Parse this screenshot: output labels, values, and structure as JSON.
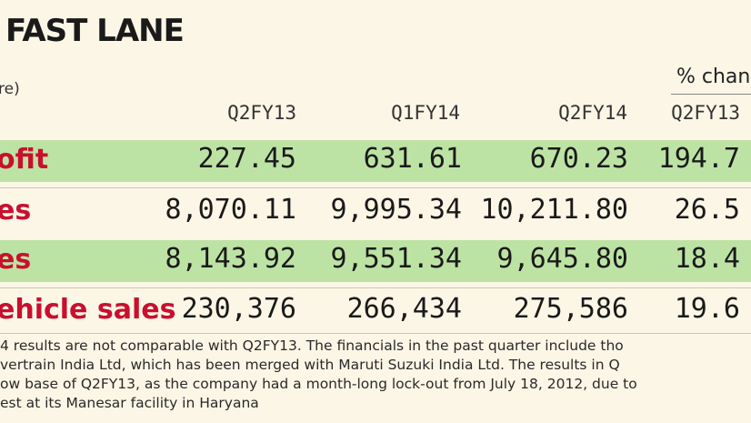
{
  "title": "FAST LANE",
  "unit_label": "re)",
  "pct_header": "% chan",
  "columns": [
    "Q2FY13",
    "Q1FY14",
    "Q2FY14",
    "Q2FY13"
  ],
  "rows": [
    {
      "label": "ofit",
      "values": [
        "227.45",
        "631.61",
        "670.23",
        "194.7"
      ]
    },
    {
      "label": "es",
      "values": [
        "8,070.11",
        "9,995.34",
        "10,211.80",
        "26.5"
      ]
    },
    {
      "label": "es",
      "values": [
        "8,143.92",
        "9,551.34",
        "9,645.80",
        "18.4"
      ]
    },
    {
      "label": "ehicle sales",
      "values": [
        "230,376",
        "266,434",
        "275,586",
        "19.6"
      ]
    }
  ],
  "notes": [
    "4 results are not comparable with Q2FY13. The financials in the past quarter include tho",
    "vertrain India Ltd, which has been merged with Maruti Suzuki India Ltd. The results in Q",
    "ow base of Q2FY13, as the company had a month-long lock-out from July 18, 2012, due to",
    "est at its Manesar facility in Haryana"
  ]
}
